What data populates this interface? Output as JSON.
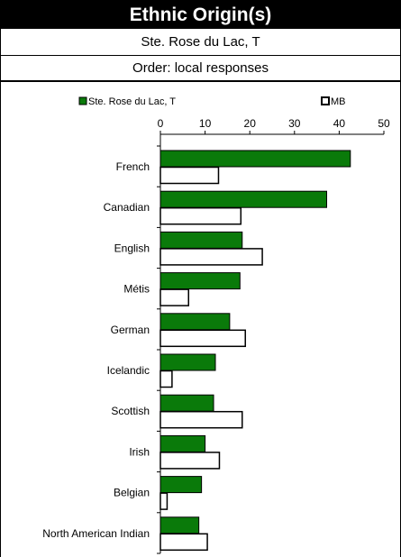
{
  "header": {
    "title": "Ethnic Origin(s)",
    "subtitle": "Ste. Rose du Lac, T",
    "order": "Order: local responses"
  },
  "colors": {
    "series1": "#0a7a0a",
    "series2": "#ffffff",
    "stroke": "#000000"
  },
  "chart_data": {
    "type": "bar",
    "orientation": "horizontal",
    "categories": [
      "French",
      "Canadian",
      "English",
      "Métis",
      "German",
      "Icelandic",
      "Scottish",
      "Irish",
      "Belgian",
      "North American Indian"
    ],
    "series": [
      {
        "name": "Ste. Rose du Lac, T",
        "values": [
          42.5,
          37.2,
          18.3,
          17.8,
          15.5,
          12.3,
          11.9,
          10.0,
          9.2,
          8.6
        ]
      },
      {
        "name": "MB",
        "values": [
          13.0,
          18.0,
          22.8,
          6.3,
          19.0,
          2.6,
          18.3,
          13.2,
          1.5,
          10.5
        ]
      }
    ],
    "x_ticks": [
      0,
      10,
      20,
      30,
      40,
      50
    ],
    "xlim": [
      0,
      50
    ],
    "xaxis_position": "top",
    "legend_position": "top"
  }
}
